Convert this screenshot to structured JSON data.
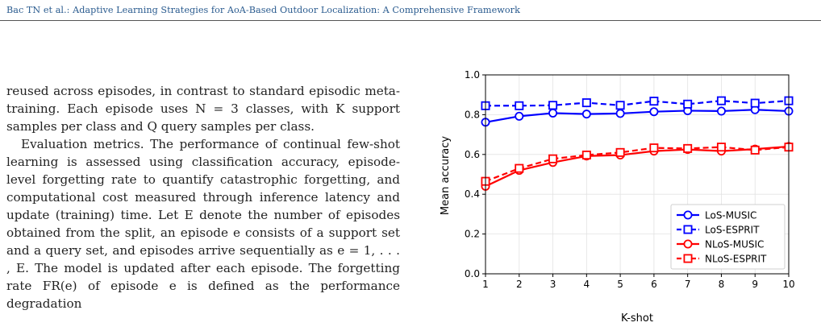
{
  "header": {
    "running_title": "Bac TN et al.: Adaptive Learning Strategies for AoA-Based Outdoor Localization: A Comprehensive Framework"
  },
  "text": {
    "para1": "reused across episodes, in contrast to standard episodic meta-training. Each episode uses N = 3 classes, with K support samples per class and Q query samples per class.",
    "para2": "Evaluation metrics. The performance of continual few-shot learning is assessed using classification accuracy, episode-level forgetting rate to quantify catastrophic forgetting, and computational cost measured through inference latency and update (training) time. Let E denote the number of episodes obtained from the split, an episode e consists of a support set and a query set, and episodes arrive sequentially as e = 1, . . . , E. The model is updated after each episode. The forgetting rate FR(e) of episode e is defined as the performance degradation"
  },
  "chart_data": {
    "type": "line",
    "x": [
      1,
      2,
      3,
      4,
      5,
      6,
      7,
      8,
      9,
      10
    ],
    "xlabel": "K-shot",
    "ylabel": "Mean accuracy",
    "xlim": [
      1,
      10
    ],
    "ylim": [
      0.0,
      1.0
    ],
    "xticks": [
      "1",
      "2",
      "3",
      "4",
      "5",
      "6",
      "7",
      "8",
      "9",
      "10"
    ],
    "yticks": [
      "0.0",
      "0.2",
      "0.4",
      "0.6",
      "0.8",
      "1.0"
    ],
    "grid": true,
    "legend_position": "bottom-right",
    "series": [
      {
        "name": "LoS-MUSIC",
        "color": "#0000ff",
        "marker": "circle",
        "dash": false,
        "values": [
          0.762,
          0.792,
          0.808,
          0.803,
          0.806,
          0.815,
          0.82,
          0.818,
          0.825,
          0.818
        ]
      },
      {
        "name": "LoS-ESPRIT",
        "color": "#0000ff",
        "marker": "square",
        "dash": true,
        "values": [
          0.845,
          0.845,
          0.847,
          0.86,
          0.847,
          0.868,
          0.853,
          0.87,
          0.858,
          0.87
        ]
      },
      {
        "name": "NLoS-MUSIC",
        "color": "#ff0000",
        "marker": "circle",
        "dash": false,
        "values": [
          0.44,
          0.52,
          0.56,
          0.592,
          0.597,
          0.617,
          0.625,
          0.617,
          0.627,
          0.64
        ]
      },
      {
        "name": "NLoS-ESPRIT",
        "color": "#ff0000",
        "marker": "square",
        "dash": true,
        "values": [
          0.465,
          0.53,
          0.578,
          0.597,
          0.61,
          0.633,
          0.63,
          0.637,
          0.622,
          0.637
        ]
      }
    ]
  }
}
